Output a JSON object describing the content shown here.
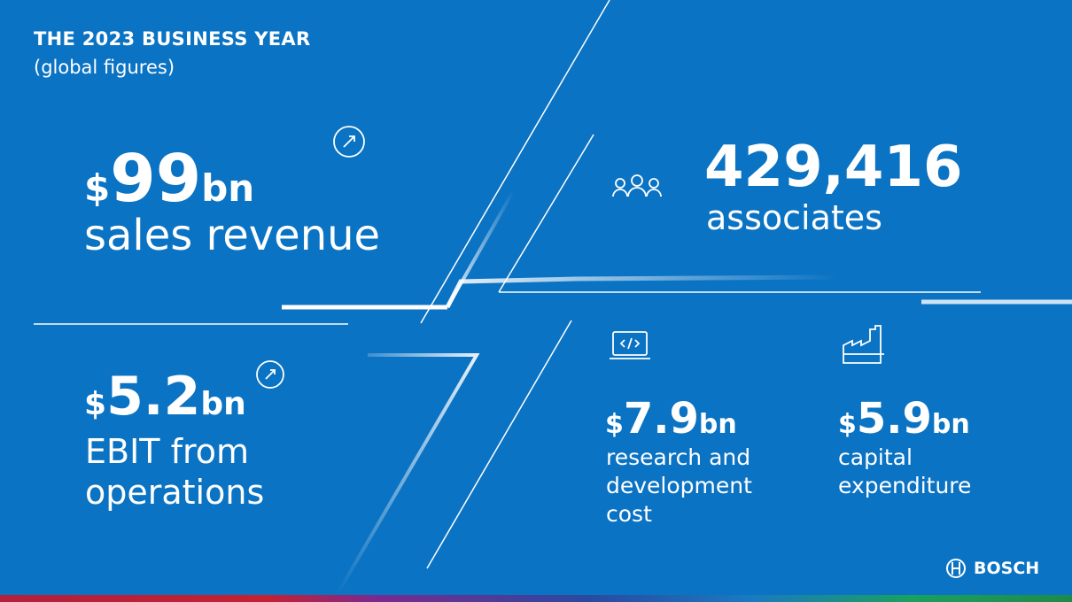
{
  "header": {
    "title": "THE 2023 BUSINESS YEAR",
    "subtitle": "(global figures)"
  },
  "figures": [
    {
      "currency": "$",
      "amount": "99",
      "unit": "bn",
      "label": [
        "sales revenue"
      ]
    },
    {
      "amount": "429,416",
      "label": [
        "associates"
      ]
    },
    {
      "currency": "$",
      "amount": "5.2",
      "unit": "bn",
      "label": [
        "EBIT from",
        "operations"
      ]
    },
    {
      "currency": "$",
      "amount": "7.9",
      "unit": "bn",
      "label": [
        "research and",
        "development",
        "cost"
      ]
    },
    {
      "currency": "$",
      "amount": "5.9",
      "unit": "bn",
      "label": [
        "capital",
        "expenditure"
      ]
    }
  ],
  "logo": "BOSCH"
}
